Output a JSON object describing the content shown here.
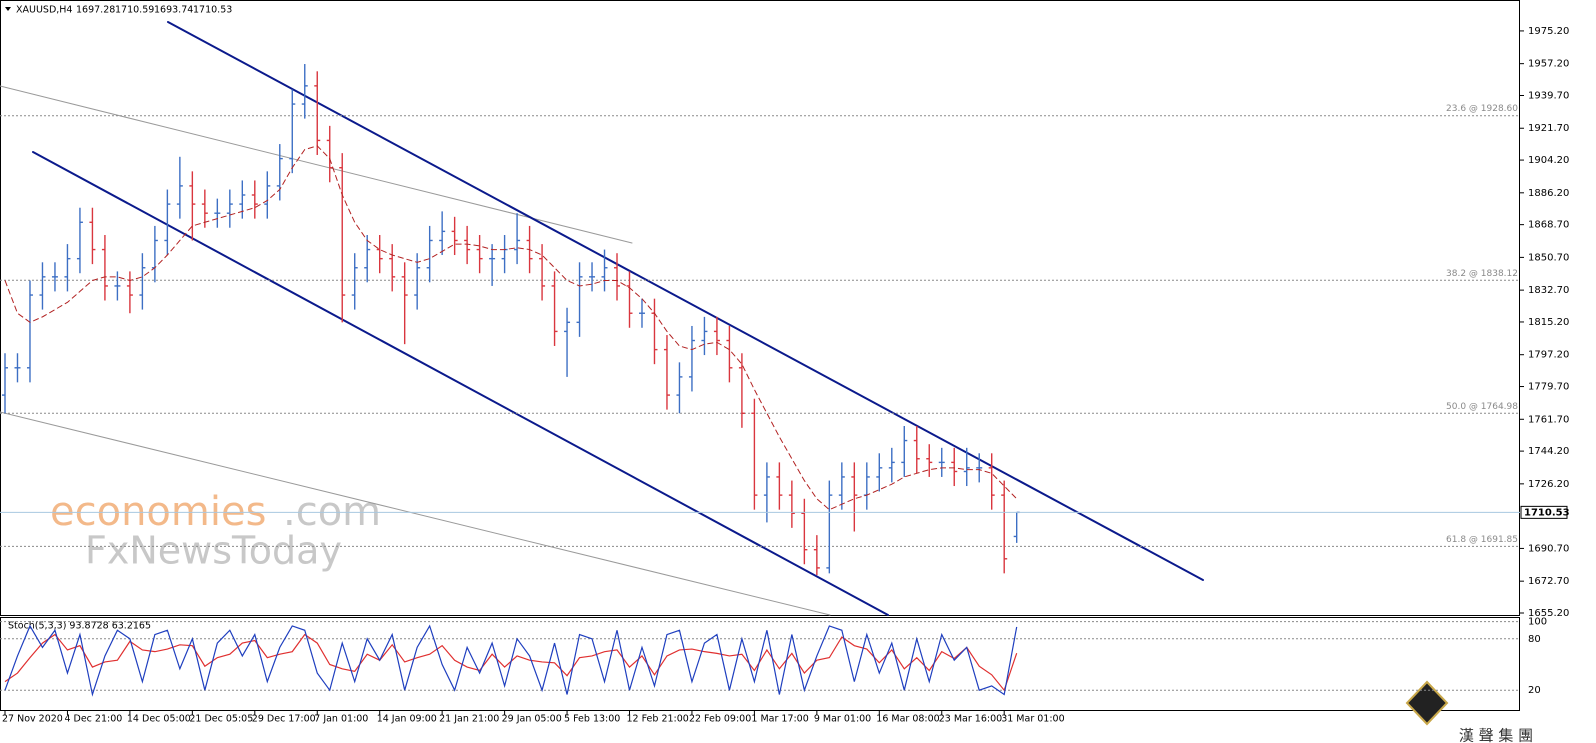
{
  "chart_data": [
    {
      "type": "ohlc",
      "title": "XAUUSD,H4",
      "annotations": [
        "economies",
        ".com",
        "FxNewsToday",
        "漢 聲 集 團"
      ],
      "categories": [
        "27 Nov 2020",
        null,
        null,
        null,
        null,
        "4 Dec 21:00",
        null,
        null,
        null,
        null,
        "14 Dec 05:00",
        null,
        null,
        null,
        null,
        "21 Dec 05:05",
        null,
        null,
        null,
        null,
        "29 Dec 17:00",
        null,
        null,
        null,
        null,
        "7 Jan 01:00",
        null,
        null,
        null,
        null,
        "14 Jan 09:00",
        null,
        null,
        null,
        null,
        "21 Jan 21:00",
        null,
        null,
        null,
        null,
        "29 Jan 05:00",
        null,
        null,
        null,
        null,
        "5 Feb 13:00",
        null,
        null,
        null,
        null,
        "12 Feb 21:00",
        null,
        null,
        null,
        null,
        "22 Feb 09:00",
        null,
        null,
        null,
        null,
        "1 Mar 17:00",
        null,
        null,
        null,
        null,
        "9 Mar 01:00",
        null,
        null,
        null,
        null,
        "16 Mar 08:00",
        null,
        null,
        null,
        null,
        "23 Mar 16:00",
        null,
        null,
        null,
        null,
        "31 Mar 01:00",
        null
      ],
      "open": [
        1775,
        1790,
        1790,
        1830,
        1840,
        1840,
        1850,
        1870,
        1855,
        1835,
        1835,
        1830,
        1845,
        1860,
        1880,
        1890,
        1880,
        1875,
        1875,
        1880,
        1885,
        1880,
        1890,
        1905,
        1935,
        1945,
        1915,
        1900,
        1830,
        1845,
        1855,
        1850,
        1840,
        1830,
        1845,
        1860,
        1865,
        1860,
        1855,
        1850,
        1850,
        1855,
        1860,
        1850,
        1835,
        1810,
        1815,
        1840,
        1840,
        1845,
        1835,
        1820,
        1820,
        1800,
        1775,
        1785,
        1805,
        1810,
        1805,
        1790,
        1765,
        1720,
        1730,
        1720,
        1710,
        1690,
        1680,
        1720,
        1730,
        1720,
        1730,
        1735,
        1738,
        1750,
        1740,
        1738,
        1738,
        1733,
        1735,
        1735,
        1720,
        1697.28
      ],
      "high": [
        1798,
        1798,
        1838,
        1848,
        1848,
        1858,
        1878,
        1878,
        1863,
        1843,
        1843,
        1853,
        1868,
        1888,
        1906,
        1898,
        1888,
        1883,
        1888,
        1893,
        1893,
        1898,
        1913,
        1943,
        1957,
        1953,
        1923,
        1908,
        1853,
        1863,
        1863,
        1858,
        1848,
        1853,
        1868,
        1876,
        1873,
        1868,
        1863,
        1858,
        1863,
        1875,
        1868,
        1858,
        1843,
        1823,
        1848,
        1848,
        1855,
        1853,
        1843,
        1828,
        1828,
        1808,
        1793,
        1813,
        1818,
        1818,
        1813,
        1798,
        1773,
        1738,
        1738,
        1728,
        1718,
        1698,
        1728,
        1738,
        1738,
        1738,
        1743,
        1746,
        1758,
        1758,
        1748,
        1746,
        1746,
        1746,
        1743,
        1743,
        1728,
        1710.59
      ],
      "low": [
        1765,
        1782,
        1782,
        1822,
        1832,
        1832,
        1842,
        1847,
        1827,
        1827,
        1820,
        1822,
        1837,
        1852,
        1872,
        1860,
        1867,
        1867,
        1867,
        1872,
        1872,
        1872,
        1882,
        1897,
        1927,
        1907,
        1892,
        1815,
        1822,
        1837,
        1842,
        1832,
        1803,
        1822,
        1837,
        1852,
        1852,
        1847,
        1842,
        1835,
        1842,
        1847,
        1842,
        1827,
        1802,
        1785,
        1807,
        1832,
        1832,
        1827,
        1812,
        1812,
        1792,
        1767,
        1765,
        1777,
        1797,
        1797,
        1782,
        1757,
        1712,
        1705,
        1712,
        1702,
        1682,
        1676,
        1677,
        1712,
        1700,
        1712,
        1722,
        1727,
        1730,
        1732,
        1730,
        1730,
        1725,
        1725,
        1727,
        1712,
        1677,
        1693.74
      ],
      "close": [
        1790,
        1790,
        1830,
        1840,
        1840,
        1850,
        1870,
        1855,
        1835,
        1835,
        1830,
        1845,
        1860,
        1880,
        1890,
        1880,
        1875,
        1875,
        1880,
        1885,
        1880,
        1890,
        1905,
        1935,
        1945,
        1915,
        1900,
        1830,
        1845,
        1855,
        1850,
        1840,
        1830,
        1845,
        1860,
        1865,
        1860,
        1855,
        1850,
        1850,
        1855,
        1860,
        1850,
        1835,
        1810,
        1815,
        1840,
        1840,
        1845,
        1835,
        1820,
        1820,
        1800,
        1775,
        1785,
        1805,
        1810,
        1805,
        1790,
        1765,
        1720,
        1730,
        1720,
        1710,
        1690,
        1680,
        1720,
        1730,
        1720,
        1730,
        1735,
        1738,
        1750,
        1740,
        1738,
        1738,
        1733,
        1735,
        1735,
        1720,
        1685,
        1710.53
      ],
      "ma": {
        "color": "#b22222",
        "values": [
          1838,
          1820,
          1815,
          1818,
          1822,
          1826,
          1832,
          1838,
          1840,
          1840,
          1838,
          1840,
          1845,
          1852,
          1860,
          1868,
          1870,
          1872,
          1874,
          1876,
          1878,
          1882,
          1888,
          1900,
          1910,
          1912,
          1905,
          1885,
          1870,
          1860,
          1855,
          1852,
          1850,
          1848,
          1850,
          1854,
          1858,
          1858,
          1857,
          1855,
          1855,
          1856,
          1855,
          1852,
          1845,
          1838,
          1835,
          1836,
          1838,
          1838,
          1834,
          1828,
          1820,
          1810,
          1802,
          1800,
          1803,
          1804,
          1800,
          1792,
          1778,
          1765,
          1752,
          1740,
          1728,
          1718,
          1712,
          1715,
          1718,
          1720,
          1723,
          1726,
          1730,
          1732,
          1734,
          1735,
          1735,
          1734,
          1734,
          1732,
          1725,
          1718
        ]
      },
      "up_color": "#3d6fc4",
      "down_color": "#d9363e",
      "ylim": [
        1654.1,
        1992.2
      ],
      "yticks": [
        {
          "value": 1975.2,
          "label": "1975.20"
        },
        {
          "value": 1957.2,
          "label": "1957.20"
        },
        {
          "value": 1939.7,
          "label": "1939.70"
        },
        {
          "value": 1921.7,
          "label": "1921.70"
        },
        {
          "value": 1904.2,
          "label": "1904.20"
        },
        {
          "value": 1886.2,
          "label": "1886.20"
        },
        {
          "value": 1868.7,
          "label": "1868.70"
        },
        {
          "value": 1850.7,
          "label": "1850.70"
        },
        {
          "value": 1832.7,
          "label": "1832.70"
        },
        {
          "value": 1815.2,
          "label": "1815.20"
        },
        {
          "value": 1797.2,
          "label": "1797.20"
        },
        {
          "value": 1779.7,
          "label": "1779.70"
        },
        {
          "value": 1761.7,
          "label": "1761.70"
        },
        {
          "value": 1744.2,
          "label": "1744.20"
        },
        {
          "value": 1726.2,
          "label": "1726.20"
        },
        {
          "value": 1690.7,
          "label": "1690.70"
        },
        {
          "value": 1672.7,
          "label": "1672.70"
        },
        {
          "value": 1655.2,
          "label": "1655.20"
        }
      ],
      "fib_levels": [
        {
          "value": 1928.6,
          "label": "23.6 @ 1928.60"
        },
        {
          "value": 1838.12,
          "label": "38.2 @ 1838.12"
        },
        {
          "value": 1764.98,
          "label": "50.0 @ 1764.98"
        },
        {
          "value": 1691.85,
          "label": "61.8 @ 1691.85"
        }
      ]
    },
    {
      "type": "line",
      "title": "Stoch(5,3,3) 93.8728 63.2165",
      "series": [
        {
          "color": "#1f3fbf",
          "values": [
            20,
            60,
            95,
            70,
            90,
            40,
            85,
            15,
            60,
            90,
            80,
            30,
            85,
            90,
            45,
            80,
            20,
            75,
            90,
            60,
            85,
            30,
            70,
            95,
            90,
            40,
            20,
            75,
            30,
            80,
            55,
            85,
            20,
            70,
            95,
            50,
            20,
            70,
            40,
            75,
            25,
            80,
            60,
            20,
            75,
            15,
            85,
            80,
            30,
            90,
            20,
            70,
            25,
            85,
            90,
            30,
            75,
            85,
            20,
            80,
            30,
            90,
            15,
            85,
            20,
            60,
            95,
            90,
            30,
            85,
            40,
            75,
            20,
            80,
            30,
            85,
            55,
            70,
            20,
            25,
            15,
            93.8728
          ]
        },
        {
          "color": "#e03030",
          "values": [
            30,
            40,
            58,
            75,
            85,
            67,
            72,
            47,
            53,
            55,
            77,
            67,
            65,
            68,
            73,
            72,
            48,
            58,
            62,
            75,
            78,
            58,
            62,
            65,
            85,
            75,
            50,
            45,
            42,
            62,
            55,
            73,
            53,
            58,
            62,
            72,
            55,
            47,
            43,
            62,
            47,
            60,
            55,
            53,
            52,
            37,
            58,
            60,
            65,
            67,
            47,
            60,
            38,
            60,
            67,
            68,
            65,
            63,
            60,
            62,
            43,
            67,
            45,
            63,
            40,
            55,
            58,
            82,
            72,
            68,
            52,
            67,
            45,
            58,
            43,
            65,
            57,
            70,
            48,
            38,
            20,
            63.2165
          ]
        }
      ],
      "ylim": [
        -4.3,
        104.3
      ],
      "yticks": [
        100,
        80,
        20
      ]
    }
  ]
}
